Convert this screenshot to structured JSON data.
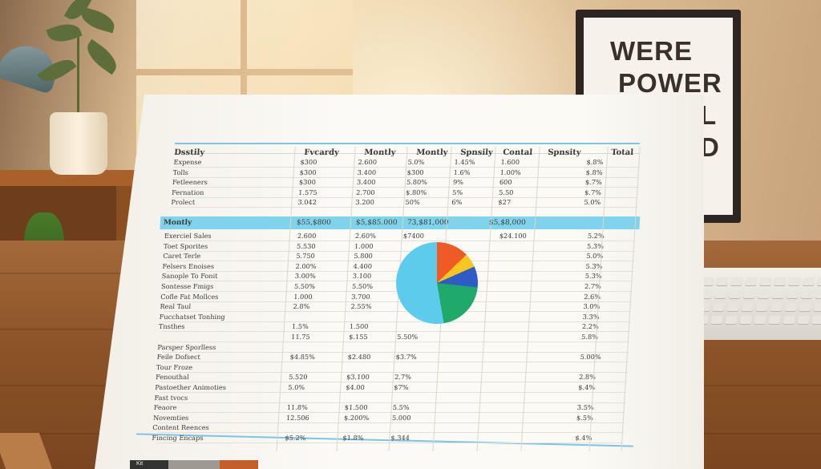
{
  "poster": {
    "line1": "WERE",
    "line2": "POWER",
    "line3": "L",
    "line4": "D"
  },
  "sheet": {
    "headers": [
      "Dsstily",
      "Fvcardy",
      "Montly",
      "Montly",
      "Spnsily",
      "Contal",
      "Spnsity",
      "Total"
    ],
    "top_rows": [
      {
        "label": "Expense",
        "c1": "$300",
        "c2": "2.600",
        "c3": "5.0%",
        "c4": "1.45%",
        "c5": "1.600",
        "c6": "$.8%"
      },
      {
        "label": "Tolls",
        "c1": "$300",
        "c2": "3.400",
        "c3": "$300",
        "c4": "1.6%",
        "c5": "1.00%",
        "c6": "$.8%"
      },
      {
        "label": "Fetleeners",
        "c1": "$300",
        "c2": "3.400",
        "c3": "5.80%",
        "c4": "9%",
        "c5": "600",
        "c6": "$.7%"
      },
      {
        "label": "Fernation",
        "c1": "1.575",
        "c2": "2.700",
        "c3": "$.80%",
        "c4": "5%",
        "c5": "5.50",
        "c6": "$.7%"
      },
      {
        "label": "Prolect",
        "c1": "3.042",
        "c2": "3.200",
        "c3": "50%",
        "c4": "6%",
        "c5": "$27",
        "c6": "5.0%"
      }
    ],
    "band": {
      "label": "Montly",
      "v1": "$55,$800",
      "v2": "$5,$85.000",
      "v3": "73,$81,000",
      "v4": "$5,$8,000"
    },
    "lower_rows": [
      {
        "label": "Exerciel Sales",
        "c1": "2.600",
        "c2": "2.60%",
        "c3": "$7400",
        "c5": "$24.100",
        "c6": "5.2%"
      },
      {
        "label": "Toet Sporites",
        "c1": "5.530",
        "c2": "1.000",
        "c3": "",
        "c5": "",
        "c6": "5.3%"
      },
      {
        "label": "Caret Terle",
        "c1": "5.750",
        "c2": "5.800",
        "c3": "",
        "c5": "",
        "c6": "5.0%"
      },
      {
        "label": "Felsers Enoises",
        "c1": "2.00%",
        "c2": "4.400",
        "c3": "",
        "c5": "",
        "c6": "5.3%"
      },
      {
        "label": "Sanople To Fonit",
        "c1": "3.00%",
        "c2": "3.100",
        "c3": "",
        "c5": "",
        "c6": "5.3%"
      },
      {
        "label": "Sontesse Fmigs",
        "c1": "5.50%",
        "c2": "5.50%",
        "c3": "",
        "c5": "",
        "c6": "2.7%"
      },
      {
        "label": "Cofle Fat Mollces",
        "c1": "1.000",
        "c2": "3.700",
        "c3": "",
        "c5": "",
        "c6": "2.6%"
      },
      {
        "label": "Real Taul",
        "c1": "2.8%",
        "c2": "2.55%",
        "c3": "",
        "c5": "",
        "c6": "3.0%"
      },
      {
        "label": "Fucchatset Tonhing",
        "c1": "",
        "c2": "",
        "c3": "",
        "c5": "",
        "c6": "3.3%"
      },
      {
        "label": "Tnsthes",
        "c1": "1.5%",
        "c2": "1.500",
        "c3": "",
        "c5": "",
        "c6": "2.2%"
      },
      {
        "label": "",
        "c1": "11.75",
        "c2": "$.155",
        "c3": "5.50%",
        "c5": "",
        "c6": "5.8%"
      },
      {
        "label": "Parsper Sporlless",
        "c1": "",
        "c2": "",
        "c3": "",
        "c5": "",
        "c6": ""
      },
      {
        "label": "Feile Dofsect",
        "c1": "$4.85%",
        "c2": "$2.480",
        "c3": "$3.7%",
        "c5": "",
        "c6": "5.00%"
      },
      {
        "label": "Tour Froze",
        "c1": "",
        "c2": "",
        "c3": "",
        "c5": "",
        "c6": ""
      },
      {
        "label": "Fenouthal",
        "c1": "5.520",
        "c2": "$3.100",
        "c3": "2.7%",
        "c5": "",
        "c6": "2.8%"
      },
      {
        "label": "Pastoether Animoties",
        "c1": "5.0%",
        "c2": "$4.00",
        "c3": "$7%",
        "c5": "",
        "c6": "$.4%"
      },
      {
        "label": "Fast tvocs",
        "c1": "",
        "c2": "",
        "c3": "",
        "c5": "",
        "c6": ""
      },
      {
        "label": "Feaore",
        "c1": "11.8%",
        "c2": "$1.500",
        "c3": "5.5%",
        "c5": "",
        "c6": "3.5%"
      },
      {
        "label": "Novemties",
        "c1": "12.506",
        "c2": "$.200%",
        "c3": "5.000",
        "c5": "",
        "c6": "$.5%"
      },
      {
        "label": "Content Reences",
        "c1": "",
        "c2": "",
        "c3": "",
        "c5": "",
        "c6": ""
      },
      {
        "label": "Fincing Encaps",
        "c1": "$5.2%",
        "c2": "$1.8%",
        "c3": "$.344",
        "c5": "",
        "c6": "$.4%"
      }
    ]
  },
  "footer_tab": "Kit",
  "chart_data": {
    "type": "pie",
    "categories": [
      "orange",
      "yellow",
      "dark-blue",
      "green",
      "light-blue"
    ],
    "values": [
      12.8,
      5.6,
      8.3,
      20.6,
      52.7
    ],
    "colors": [
      "#f05a24",
      "#f8c521",
      "#2e5cc7",
      "#1fa96a",
      "#5ccbec"
    ]
  }
}
